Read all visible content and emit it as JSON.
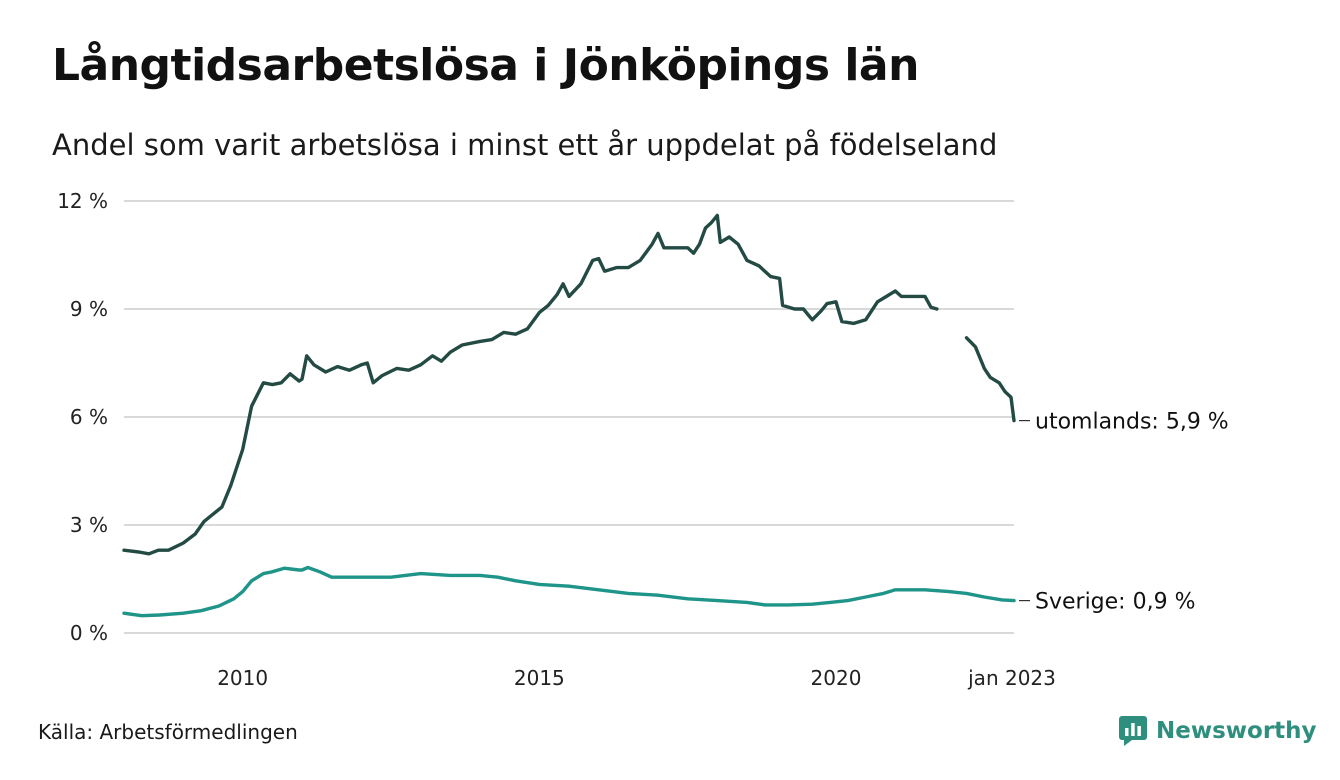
{
  "title": "Långtidsarbetslösa i Jönköpings län",
  "subtitle": "Andel som varit arbetslösa i minst ett år uppdelat på födelseland",
  "source": "Källa: Arbetsförmedlingen",
  "brand": {
    "name": "Newsworthy",
    "icon": "newsworthy-logo-icon",
    "color": "#2e8f7f"
  },
  "chart_data": {
    "type": "line",
    "title": "Långtidsarbetslösa i Jönköpings län",
    "subtitle": "Andel som varit arbetslösa i minst ett år uppdelat på födelseland",
    "xlim": [
      2008.0,
      2023.0
    ],
    "ylim": [
      0,
      12
    ],
    "yticks": [
      0,
      3,
      6,
      9,
      12
    ],
    "ytick_labels": [
      "0 %",
      "3 %",
      "6 %",
      "9 %",
      "12 %"
    ],
    "xticks": [
      2010,
      2015,
      2020,
      2023
    ],
    "xtick_labels": [
      "2010",
      "2015",
      "2020",
      "jan 2023"
    ],
    "grid": "horizontal",
    "series": [
      {
        "name": "utomlands",
        "end_label": "utomlands: 5,9 %",
        "color": "#244a44",
        "points": [
          [
            2008.0,
            2.3
          ],
          [
            2008.25,
            2.25
          ],
          [
            2008.42,
            2.2
          ],
          [
            2008.58,
            2.3
          ],
          [
            2008.75,
            2.3
          ],
          [
            2009.0,
            2.5
          ],
          [
            2009.2,
            2.75
          ],
          [
            2009.35,
            3.1
          ],
          [
            2009.5,
            3.3
          ],
          [
            2009.65,
            3.5
          ],
          [
            2009.8,
            4.1
          ],
          [
            2010.0,
            5.1
          ],
          [
            2010.15,
            6.3
          ],
          [
            2010.35,
            6.95
          ],
          [
            2010.5,
            6.9
          ],
          [
            2010.65,
            6.95
          ],
          [
            2010.8,
            7.2
          ],
          [
            2010.95,
            7.0
          ],
          [
            2011.0,
            7.05
          ],
          [
            2011.08,
            7.7
          ],
          [
            2011.2,
            7.45
          ],
          [
            2011.4,
            7.25
          ],
          [
            2011.6,
            7.4
          ],
          [
            2011.8,
            7.3
          ],
          [
            2012.0,
            7.45
          ],
          [
            2012.1,
            7.5
          ],
          [
            2012.2,
            6.95
          ],
          [
            2012.35,
            7.15
          ],
          [
            2012.6,
            7.35
          ],
          [
            2012.8,
            7.3
          ],
          [
            2013.0,
            7.45
          ],
          [
            2013.2,
            7.7
          ],
          [
            2013.35,
            7.55
          ],
          [
            2013.5,
            7.8
          ],
          [
            2013.7,
            8.0
          ],
          [
            2014.0,
            8.1
          ],
          [
            2014.2,
            8.15
          ],
          [
            2014.4,
            8.35
          ],
          [
            2014.6,
            8.3
          ],
          [
            2014.8,
            8.45
          ],
          [
            2015.0,
            8.9
          ],
          [
            2015.15,
            9.1
          ],
          [
            2015.3,
            9.4
          ],
          [
            2015.4,
            9.7
          ],
          [
            2015.5,
            9.35
          ],
          [
            2015.7,
            9.7
          ],
          [
            2015.9,
            10.35
          ],
          [
            2016.0,
            10.4
          ],
          [
            2016.1,
            10.05
          ],
          [
            2016.3,
            10.15
          ],
          [
            2016.5,
            10.15
          ],
          [
            2016.7,
            10.35
          ],
          [
            2016.9,
            10.8
          ],
          [
            2017.0,
            11.1
          ],
          [
            2017.1,
            10.7
          ],
          [
            2017.3,
            10.7
          ],
          [
            2017.5,
            10.7
          ],
          [
            2017.6,
            10.55
          ],
          [
            2017.7,
            10.8
          ],
          [
            2017.8,
            11.25
          ],
          [
            2017.9,
            11.4
          ],
          [
            2018.0,
            11.6
          ],
          [
            2018.05,
            10.85
          ],
          [
            2018.2,
            11.0
          ],
          [
            2018.35,
            10.8
          ],
          [
            2018.5,
            10.35
          ],
          [
            2018.7,
            10.2
          ],
          [
            2018.9,
            9.9
          ],
          [
            2019.05,
            9.85
          ],
          [
            2019.1,
            9.1
          ],
          [
            2019.3,
            9.0
          ],
          [
            2019.45,
            9.0
          ],
          [
            2019.6,
            8.7
          ],
          [
            2019.75,
            8.95
          ],
          [
            2019.85,
            9.15
          ],
          [
            2020.0,
            9.2
          ],
          [
            2020.1,
            8.65
          ],
          [
            2020.3,
            8.6
          ],
          [
            2020.5,
            8.7
          ],
          [
            2020.7,
            9.2
          ],
          [
            2020.9,
            9.4
          ],
          [
            2021.0,
            9.5
          ],
          [
            2021.1,
            9.35
          ],
          [
            2021.3,
            9.35
          ],
          [
            2021.5,
            9.35
          ],
          [
            2021.6,
            9.05
          ],
          [
            2021.7,
            9.0
          ],
          null,
          [
            2022.2,
            8.2
          ],
          [
            2022.35,
            7.95
          ],
          [
            2022.5,
            7.35
          ],
          [
            2022.6,
            7.1
          ],
          [
            2022.75,
            6.95
          ],
          [
            2022.85,
            6.7
          ],
          [
            2022.95,
            6.55
          ],
          [
            2023.0,
            5.9
          ]
        ]
      },
      {
        "name": "Sverige",
        "end_label": "Sverige: 0,9 %",
        "color": "#1f9589",
        "points": [
          [
            2008.0,
            0.55
          ],
          [
            2008.3,
            0.48
          ],
          [
            2008.6,
            0.5
          ],
          [
            2009.0,
            0.55
          ],
          [
            2009.3,
            0.62
          ],
          [
            2009.6,
            0.75
          ],
          [
            2009.85,
            0.95
          ],
          [
            2010.0,
            1.15
          ],
          [
            2010.15,
            1.45
          ],
          [
            2010.35,
            1.65
          ],
          [
            2010.5,
            1.7
          ],
          [
            2010.7,
            1.8
          ],
          [
            2010.95,
            1.75
          ],
          [
            2011.0,
            1.75
          ],
          [
            2011.1,
            1.82
          ],
          [
            2011.3,
            1.7
          ],
          [
            2011.5,
            1.55
          ],
          [
            2011.8,
            1.55
          ],
          [
            2012.1,
            1.55
          ],
          [
            2012.5,
            1.55
          ],
          [
            2013.0,
            1.65
          ],
          [
            2013.5,
            1.6
          ],
          [
            2014.0,
            1.6
          ],
          [
            2014.3,
            1.55
          ],
          [
            2014.6,
            1.45
          ],
          [
            2015.0,
            1.35
          ],
          [
            2015.5,
            1.3
          ],
          [
            2016.0,
            1.2
          ],
          [
            2016.5,
            1.1
          ],
          [
            2017.0,
            1.05
          ],
          [
            2017.5,
            0.95
          ],
          [
            2018.0,
            0.9
          ],
          [
            2018.5,
            0.85
          ],
          [
            2018.8,
            0.78
          ],
          [
            2019.2,
            0.78
          ],
          [
            2019.6,
            0.8
          ],
          [
            2019.9,
            0.85
          ],
          [
            2020.2,
            0.9
          ],
          [
            2020.5,
            1.0
          ],
          [
            2020.8,
            1.1
          ],
          [
            2021.0,
            1.2
          ],
          [
            2021.5,
            1.2
          ],
          [
            2021.9,
            1.15
          ],
          [
            2022.2,
            1.1
          ],
          [
            2022.5,
            1.0
          ],
          [
            2022.8,
            0.92
          ],
          [
            2023.0,
            0.9
          ]
        ]
      }
    ]
  }
}
